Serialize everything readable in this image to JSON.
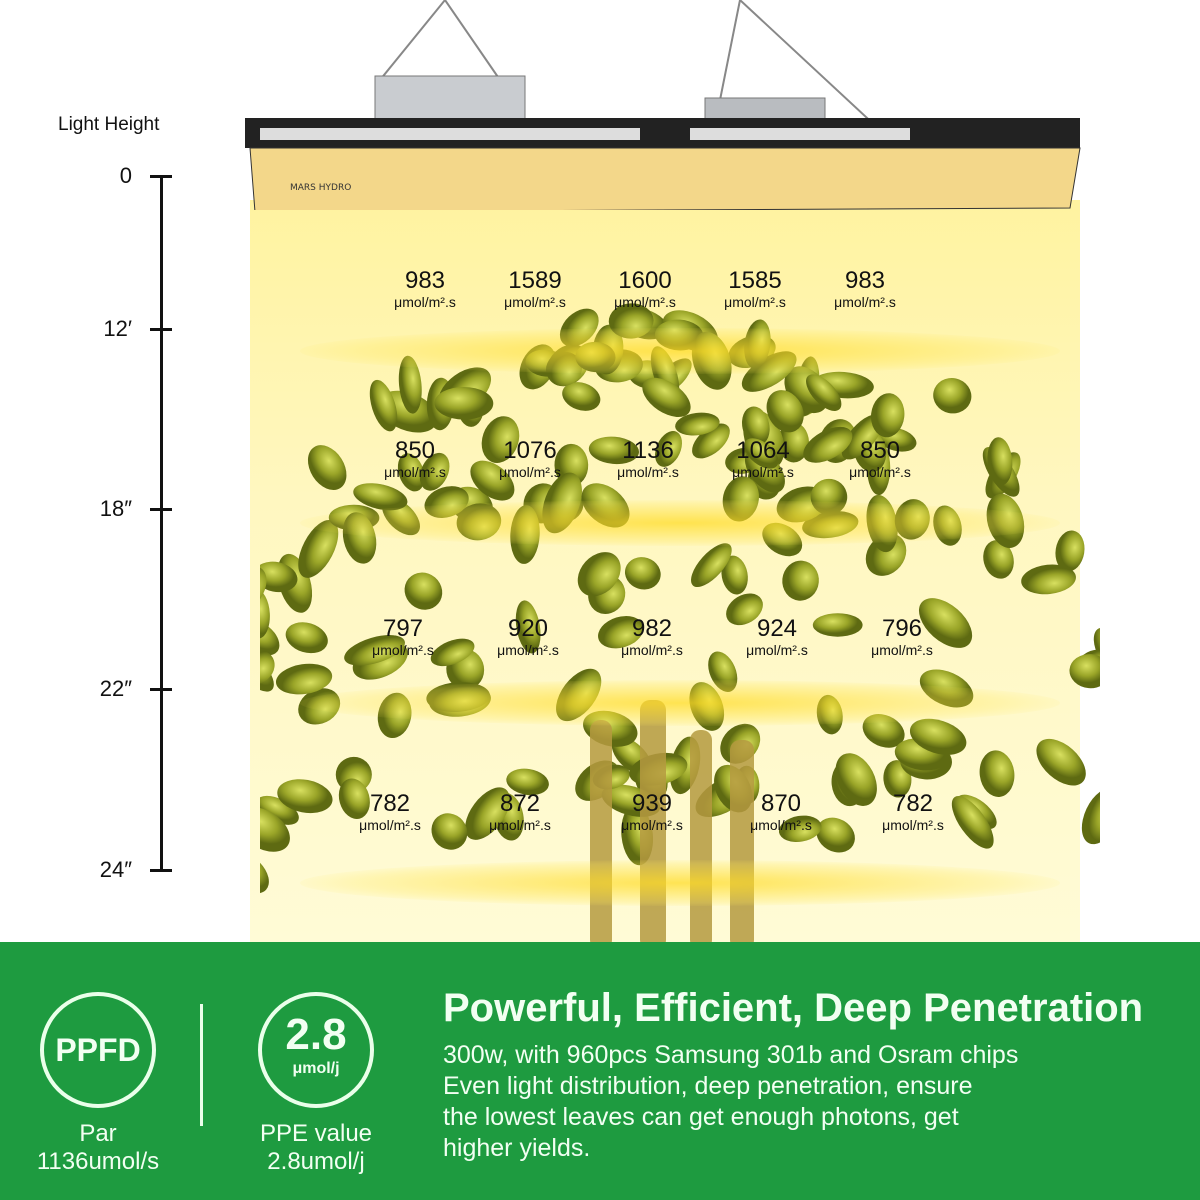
{
  "axis": {
    "title": "Light Height",
    "ticks": [
      "0",
      "12′",
      "18″",
      "22″",
      "24″"
    ]
  },
  "unit": "μmol/m².s",
  "rows": [
    [
      "983",
      "1589",
      "1600",
      "1585",
      "983"
    ],
    [
      "850",
      "1076",
      "1136",
      "1064",
      "850"
    ],
    [
      "797",
      "920",
      "982",
      "924",
      "796"
    ],
    [
      "782",
      "872",
      "939",
      "870",
      "782"
    ]
  ],
  "fixture": {
    "brand": "MARS HYDRO"
  },
  "panel": {
    "badge1": {
      "label": "PPFD",
      "line1": "Par",
      "line2": "1136umol/s"
    },
    "badge2": {
      "value": "2.8",
      "unit": "μmol/j",
      "line1": "PPE value",
      "line2": "2.8umol/j"
    },
    "headline": "Powerful, Efficient, Deep Penetration",
    "body": [
      "300w, with 960pcs Samsung 301b and Osram chips",
      "Even light distribution, deep penetration, ensure",
      "the lowest leaves can get enough photons, get",
      "higher yields."
    ]
  },
  "colors": {
    "green": "#1e9b40",
    "light": "#fff3a0"
  }
}
